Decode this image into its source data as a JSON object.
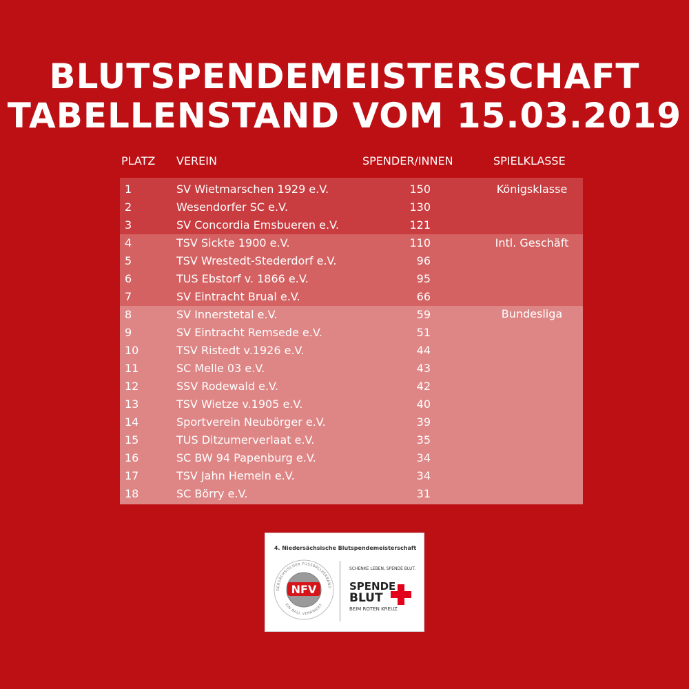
{
  "title": {
    "line1": "BLUTSPENDEMEISTERSCHAFT",
    "line2": "TABELLENSTAND VOM 15.03.2019"
  },
  "table": {
    "headers": {
      "platz": "PLATZ",
      "verein": "VEREIN",
      "spender": "SPENDER/INNEN",
      "spielklasse": "SPIELKLASSE"
    },
    "rows": [
      {
        "platz": "1",
        "verein": "SV Wietmarschen 1929 e.V.",
        "spender": "150"
      },
      {
        "platz": "2",
        "verein": "Wesendorfer SC e.V.",
        "spender": "130"
      },
      {
        "platz": "3",
        "verein": "SV Concordia Emsbueren e.V.",
        "spender": "121"
      },
      {
        "platz": "4",
        "verein": "TSV Sickte 1900 e.V.",
        "spender": "110"
      },
      {
        "platz": "5",
        "verein": "TSV Wrestedt-Stederdorf e.V.",
        "spender": "96"
      },
      {
        "platz": "6",
        "verein": "TUS Ebstorf v. 1866 e.V.",
        "spender": "95"
      },
      {
        "platz": "7",
        "verein": "SV Eintracht Brual e.V.",
        "spender": "66"
      },
      {
        "platz": "8",
        "verein": "SV Innerstetal e.V.",
        "spender": "59"
      },
      {
        "platz": "9",
        "verein": "SV Eintracht Remsede e.V.",
        "spender": "51"
      },
      {
        "platz": "10",
        "verein": "TSV Ristedt v.1926 e.V.",
        "spender": "44"
      },
      {
        "platz": "11",
        "verein": "SC Melle 03 e.V.",
        "spender": "43"
      },
      {
        "platz": "12",
        "verein": "SSV Rodewald e.V.",
        "spender": "42"
      },
      {
        "platz": "13",
        "verein": "TSV Wietze v.1905 e.V.",
        "spender": "40"
      },
      {
        "platz": "14",
        "verein": "Sportverein Neubörger e.V.",
        "spender": "39"
      },
      {
        "platz": "15",
        "verein": "TUS Ditzumerverlaat e.V.",
        "spender": "35"
      },
      {
        "platz": "16",
        "verein": "SC BW 94 Papenburg e.V.",
        "spender": "34"
      },
      {
        "platz": "17",
        "verein": "TSV Jahn Hemeln e.V.",
        "spender": "34"
      },
      {
        "platz": "18",
        "verein": "SC Börry e.V.",
        "spender": "31"
      }
    ],
    "klassen": [
      "Königsklasse",
      "Intl. Geschäft",
      "Bundesliga"
    ]
  },
  "colors": {
    "background": "#bd1014",
    "band_koenigsklasse": "#c93c3f",
    "band_intl": "#d56262",
    "band_bundesliga": "#de8585"
  },
  "logo": {
    "caption": "4. Niedersächsische Blutspendemeisterschaft",
    "nfv_text": "NFV",
    "nfv_ring_top": "NIEDERSÄCHSISCHER FUSSBALLVERBAND E.V.",
    "nfv_ring_bottom": "EIN BALL VERBINDET",
    "slogan": "SCHENKE LEBEN, SPENDE BLUT.",
    "spende": "SPENDE",
    "blut": "BLUT",
    "sub": "BEIM ROTEN KREUZ"
  }
}
